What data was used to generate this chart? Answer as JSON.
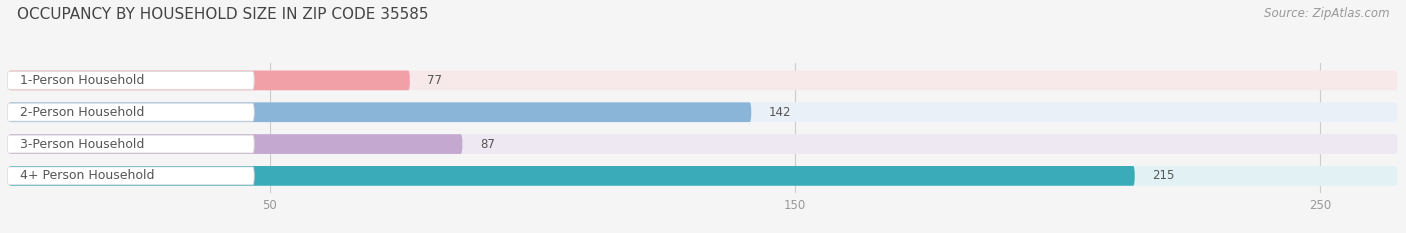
{
  "title": "OCCUPANCY BY HOUSEHOLD SIZE IN ZIP CODE 35585",
  "source": "Source: ZipAtlas.com",
  "categories": [
    "1-Person Household",
    "2-Person Household",
    "3-Person Household",
    "4+ Person Household"
  ],
  "values": [
    77,
    142,
    87,
    215
  ],
  "bar_colors": [
    "#f2a0a8",
    "#8ab4d8",
    "#c5a8d0",
    "#3aabb8"
  ],
  "bar_bg_colors": [
    "#f7e8ea",
    "#eaf0f7",
    "#ede8f2",
    "#e2f2f4"
  ],
  "background_color": "#f5f5f5",
  "label_box_color": "#ffffff",
  "label_box_edge": "#dddddd",
  "text_color": "#555555",
  "tick_color": "#999999",
  "grid_color": "#cccccc",
  "title_color": "#444444",
  "source_color": "#999999",
  "xlim_min": 0,
  "xlim_max": 265,
  "xticks": [
    50,
    150,
    250
  ],
  "title_fontsize": 11,
  "label_fontsize": 9,
  "value_fontsize": 8.5,
  "source_fontsize": 8.5,
  "tick_fontsize": 8.5
}
